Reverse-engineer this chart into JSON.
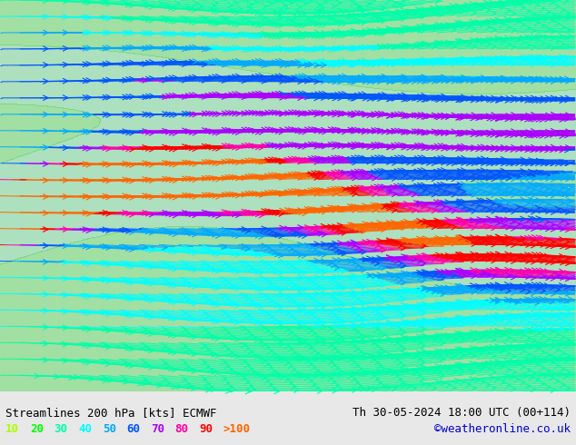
{
  "title_left": "Streamlines 200 hPa [kts] ECMWF",
  "title_right": "Th 30-05-2024 18:00 UTC (00+114)",
  "credit": "©weatheronline.co.uk",
  "legend_values": [
    "10",
    "20",
    "30",
    "40",
    "50",
    "60",
    "70",
    "80",
    "90",
    ">100"
  ],
  "legend_colors": [
    "#aaff00",
    "#00ff00",
    "#00ffaa",
    "#00ffff",
    "#00aaff",
    "#0055ff",
    "#aa00ff",
    "#ff00aa",
    "#ff0000",
    "#ff6600"
  ],
  "bg_color": "#e8e8e8",
  "plot_bg": "#f0f0f0",
  "figsize": [
    6.34,
    4.9
  ],
  "dpi": 100,
  "font_color": "#000000",
  "title_fontsize": 9,
  "legend_fontsize": 9,
  "credit_color": "#0000cc"
}
